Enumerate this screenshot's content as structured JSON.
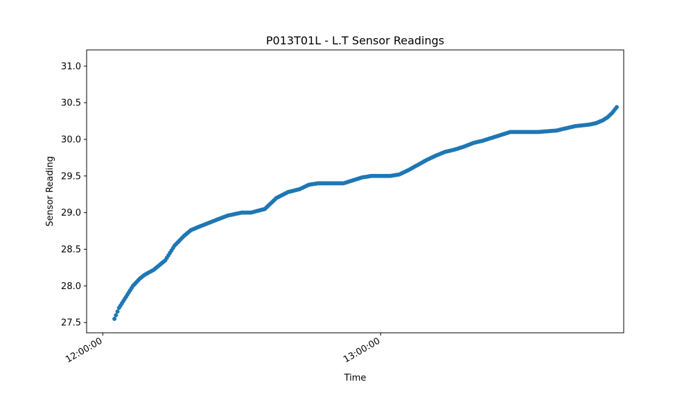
{
  "chart_data": {
    "type": "scatter",
    "title": "P013T01L - L.T Sensor Readings",
    "xlabel": "Time",
    "ylabel": "Sensor Reading",
    "xlim": [
      "11:56:30",
      "13:52:30"
    ],
    "ylim": [
      27.36,
      31.22
    ],
    "x_ticks": [
      {
        "value": "12:00:00",
        "label": "12:00:00"
      },
      {
        "value": "13:00:00",
        "label": "13:00:00"
      }
    ],
    "y_ticks": [
      27.5,
      28.0,
      28.5,
      29.0,
      29.5,
      30.0,
      30.5,
      31.0
    ],
    "y_tick_labels": [
      "27.5",
      "28.0",
      "28.5",
      "29.0",
      "29.5",
      "30.0",
      "30.5",
      "31.0"
    ],
    "grid": false,
    "series": [
      {
        "color": "#1f77b4",
        "x": [
          "12:02:30",
          "12:03:30",
          "12:05:00",
          "12:06:30",
          "12:08:00",
          "12:09:00",
          "12:11:00",
          "12:13:30",
          "12:15:30",
          "12:17:30",
          "12:19:00",
          "12:20:30",
          "12:22:30",
          "12:24:30",
          "12:27:00",
          "12:30:00",
          "12:32:00",
          "12:35:00",
          "12:37:30",
          "12:40:00",
          "12:42:30",
          "12:44:30",
          "12:46:30",
          "12:48:00",
          "12:50:00",
          "12:52:00",
          "12:54:00",
          "12:56:00",
          "12:58:00",
          "13:00:00",
          "13:02:00",
          "13:04:00",
          "13:06:00",
          "13:08:00",
          "13:10:00",
          "13:12:00",
          "13:14:00",
          "13:16:00",
          "13:18:00",
          "13:20:00",
          "13:22:00",
          "13:24:00",
          "13:26:00",
          "13:28:00",
          "13:30:00",
          "13:34:00",
          "13:38:00",
          "13:42:00",
          "13:45:00",
          "13:46:30",
          "13:48:00",
          "13:49:00",
          "13:50:00",
          "13:51:00"
        ],
        "y": [
          27.55,
          27.7,
          27.85,
          28.0,
          28.1,
          28.15,
          28.22,
          28.35,
          28.55,
          28.68,
          28.76,
          28.8,
          28.85,
          28.9,
          28.96,
          29.0,
          29.0,
          29.05,
          29.2,
          29.28,
          29.32,
          29.38,
          29.4,
          29.4,
          29.4,
          29.4,
          29.44,
          29.48,
          29.5,
          29.5,
          29.5,
          29.52,
          29.58,
          29.65,
          29.72,
          29.78,
          29.83,
          29.86,
          29.9,
          29.95,
          29.98,
          30.02,
          30.06,
          30.1,
          30.1,
          30.1,
          30.12,
          30.18,
          30.2,
          30.22,
          30.26,
          30.3,
          30.36,
          30.44
        ]
      }
    ]
  }
}
